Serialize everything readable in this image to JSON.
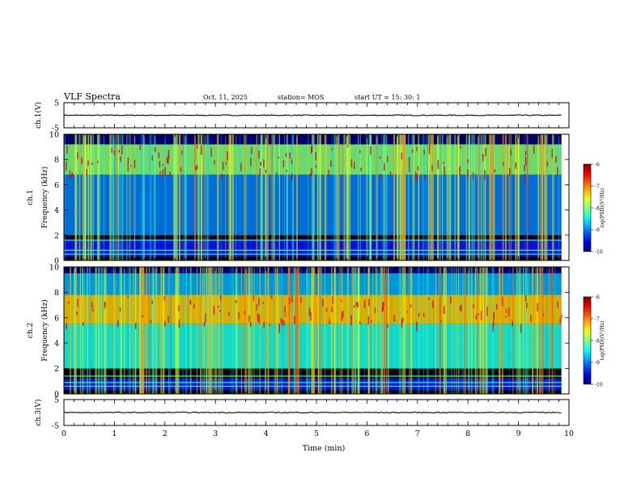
{
  "header": {
    "title": "VLF Spectra",
    "date": "Oct. 11, 2025",
    "station": "station= MOS",
    "start": "start  UT =  15: 30: 1"
  },
  "chart_data": [
    {
      "type": "line",
      "name": "ch1-waveform",
      "ylabel": "ch.1(V)",
      "ylim": [
        -5,
        5
      ],
      "yticks": [
        "5",
        "-5"
      ],
      "x": [
        0,
        9.85
      ],
      "y": [
        0,
        0
      ]
    },
    {
      "type": "heatmap",
      "name": "ch1-spectrogram",
      "ylabel_line1": "ch.1",
      "ylabel_line2": "Frequency (kHz)",
      "ylim": [
        0,
        10
      ],
      "yticks": [
        "0",
        "2",
        "4",
        "6",
        "8",
        "10"
      ],
      "xlim": [
        0,
        9.85
      ],
      "colorbar": {
        "label": "log(PSD)(V²/Hz)",
        "ticks": [
          "-6",
          "-7",
          "-8",
          "-9",
          "-10"
        ],
        "range": [
          -10,
          -6
        ]
      },
      "bands": [
        {
          "from_khz": 6.8,
          "to_khz": 9.2,
          "level": -8.0
        },
        {
          "from_khz": 2.0,
          "to_khz": 6.8,
          "level": -9.0
        },
        {
          "from_khz": 0.3,
          "to_khz": 1.7,
          "level": -9.4
        },
        {
          "from_khz": 9.2,
          "to_khz": 10.0,
          "level": -10.0
        }
      ],
      "bright_lines_khz": [
        1.6,
        0.8,
        0.5
      ]
    },
    {
      "type": "heatmap",
      "name": "ch2-spectrogram",
      "ylabel_line1": "ch.2",
      "ylabel_line2": "Frequency (kHz)",
      "ylim": [
        0,
        10
      ],
      "yticks": [
        "0",
        "2",
        "4",
        "6",
        "8",
        "10"
      ],
      "xlim": [
        0,
        9.85
      ],
      "colorbar": {
        "label": "log(PSD)(V²/Hz)",
        "ticks": [
          "-6",
          "-7",
          "-8",
          "-9",
          "-10"
        ],
        "range": [
          -10,
          -6
        ]
      },
      "bands": [
        {
          "from_khz": 5.5,
          "to_khz": 7.8,
          "level": -7.3
        },
        {
          "from_khz": 2.0,
          "to_khz": 5.5,
          "level": -8.4
        },
        {
          "from_khz": 7.8,
          "to_khz": 9.5,
          "level": -8.8
        },
        {
          "from_khz": 0.3,
          "to_khz": 1.2,
          "level": -9.4
        },
        {
          "from_khz": 9.5,
          "to_khz": 10.0,
          "level": -10.0
        }
      ],
      "bright_lines_khz": [
        1.4,
        0.9,
        0.6
      ]
    },
    {
      "type": "line",
      "name": "ch3-waveform",
      "ylabel": "ch.3(V)",
      "ylim": [
        -5,
        5
      ],
      "yticks": [
        "5",
        "-5"
      ],
      "x": [
        0,
        9.85
      ],
      "y": [
        0,
        0
      ]
    }
  ],
  "xaxis": {
    "label": "Time  (min)",
    "xlim": [
      0,
      10
    ],
    "ticks": [
      "0",
      "1",
      "2",
      "3",
      "4",
      "5",
      "6",
      "7",
      "8",
      "9",
      "10"
    ]
  },
  "colors": {
    "axis": "#000000",
    "background": "#000000",
    "trace": "#000000"
  }
}
